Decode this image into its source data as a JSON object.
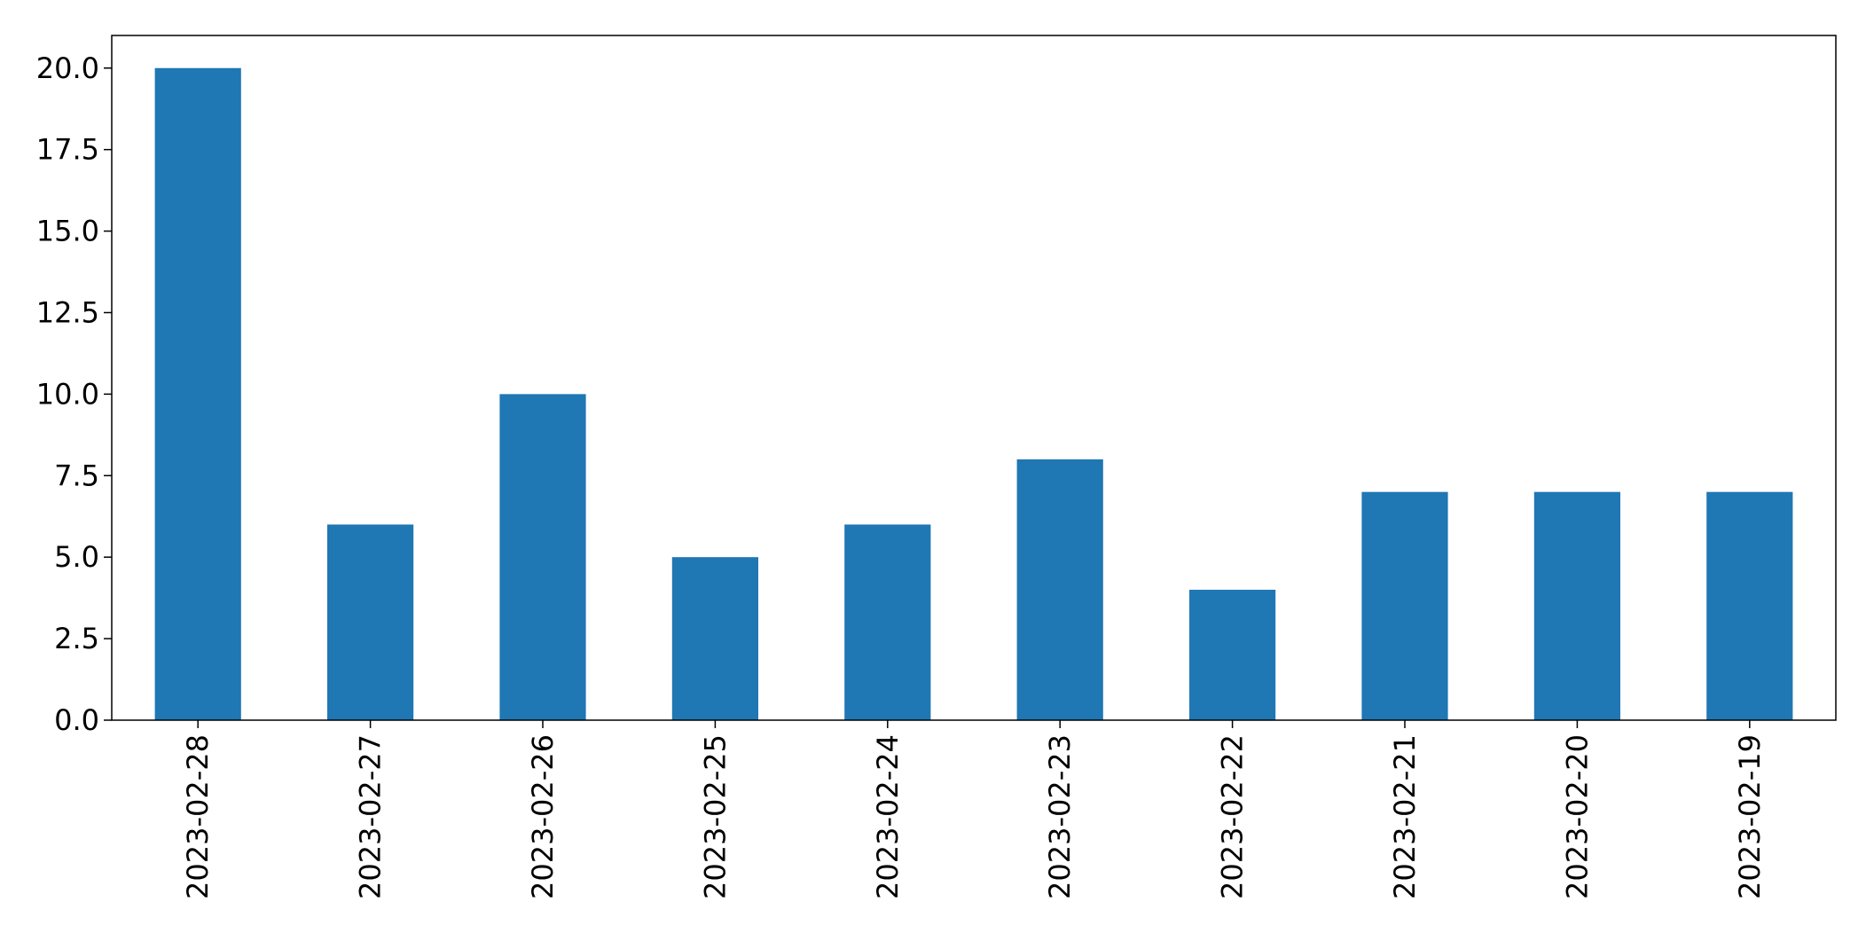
{
  "chart_data": {
    "type": "bar",
    "title": "",
    "xlabel": "",
    "ylabel": "",
    "categories": [
      "2023-02-28",
      "2023-02-27",
      "2023-02-26",
      "2023-02-25",
      "2023-02-24",
      "2023-02-23",
      "2023-02-22",
      "2023-02-21",
      "2023-02-20",
      "2023-02-19"
    ],
    "series": [
      {
        "values": [
          20,
          6,
          10,
          5,
          6,
          8,
          4,
          7,
          7,
          7
        ],
        "color": "#1f77b4"
      }
    ],
    "ylim": [
      0,
      21
    ],
    "yticks": [
      0.0,
      2.5,
      5.0,
      7.5,
      10.0,
      12.5,
      15.0,
      17.5,
      20.0
    ],
    "ytick_labels": [
      "0.0",
      "2.5",
      "5.0",
      "7.5",
      "10.0",
      "12.5",
      "15.0",
      "17.5",
      "20.0"
    ],
    "x_tick_rotation": "vertical",
    "grid": false,
    "legend": "none"
  }
}
